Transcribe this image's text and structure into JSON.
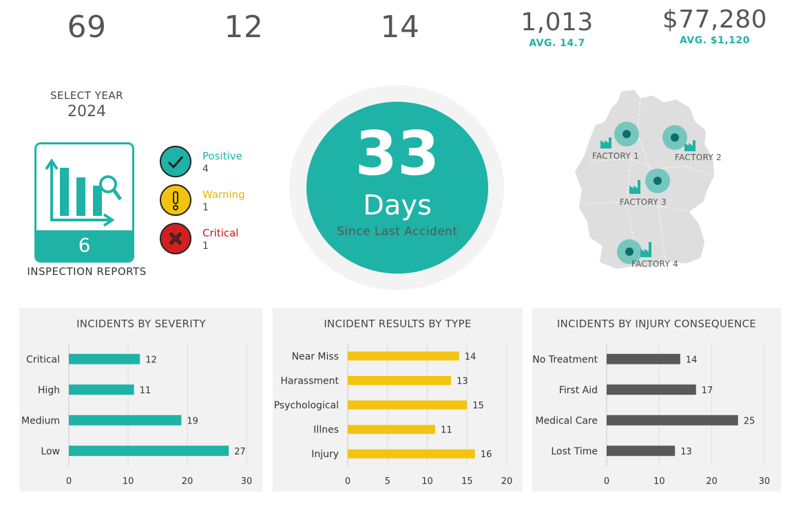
{
  "kpis": [
    {
      "value": "69",
      "sub": ""
    },
    {
      "value": "12",
      "sub": ""
    },
    {
      "value": "14",
      "sub": ""
    },
    {
      "value": "1,013",
      "sub": "AVG. 14.7"
    },
    {
      "value": "$77,280",
      "sub": "AVG. $1,120"
    }
  ],
  "year": {
    "label": "SELECT YEAR",
    "value": "2024"
  },
  "reports": {
    "count": "6",
    "caption": "INSPECTION REPORTS"
  },
  "statuses": [
    {
      "name": "Positive",
      "count": "4",
      "color": "#1eb3a6",
      "icon": "check-icon"
    },
    {
      "name": "Warning",
      "count": "1",
      "color": "#f2c40f",
      "icon": "exclamation-icon"
    },
    {
      "name": "Critical",
      "count": "1",
      "color": "#d22020",
      "icon": "x-icon"
    }
  ],
  "days": {
    "number": "33",
    "word": "Days",
    "subtitle": "Since Last Accident"
  },
  "factories": [
    "FACTORY 1",
    "FACTORY 2",
    "FACTORY 3",
    "FACTORY 4"
  ],
  "colors": {
    "teal": "#1eb3a6",
    "yellow": "#f2c40f",
    "gray": "#595959",
    "red": "#d22020"
  },
  "chart_data": [
    {
      "type": "bar",
      "orientation": "horizontal",
      "title": "INCIDENTS BY SEVERITY",
      "categories": [
        "Critical",
        "High",
        "Medium",
        "Low"
      ],
      "values": [
        12,
        11,
        19,
        27
      ],
      "xlim": [
        0,
        30
      ],
      "ticks": [
        0,
        10,
        20,
        30
      ],
      "color": "#1eb3a6",
      "grid": true
    },
    {
      "type": "bar",
      "orientation": "horizontal",
      "title": "INCIDENT RESULTS BY TYPE",
      "categories": [
        "Near Miss",
        "Harassment",
        "Psychological",
        "Illnes",
        "Injury"
      ],
      "values": [
        14,
        13,
        15,
        11,
        16
      ],
      "xlim": [
        0,
        20
      ],
      "ticks": [
        0,
        5,
        10,
        15,
        20
      ],
      "color": "#f2c40f",
      "grid": true
    },
    {
      "type": "bar",
      "orientation": "horizontal",
      "title": "INCIDENTS BY INJURY CONSEQUENCE",
      "categories": [
        "No Treatment",
        "First Aid",
        "Medical Care",
        "Lost Time"
      ],
      "values": [
        14,
        17,
        25,
        13
      ],
      "xlim": [
        0,
        30
      ],
      "ticks": [
        0,
        10,
        20,
        30
      ],
      "color": "#595959",
      "grid": true
    }
  ]
}
